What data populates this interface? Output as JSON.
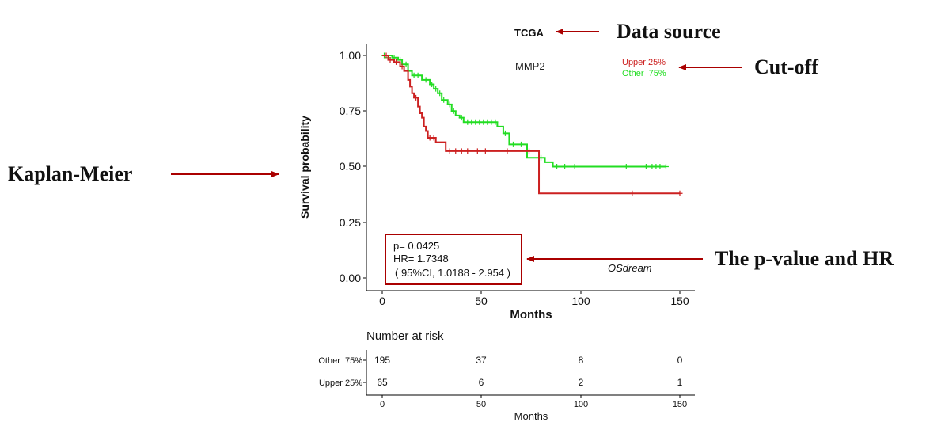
{
  "annotations": {
    "data_source": "Data source",
    "cutoff": "Cut-off",
    "kaplan_meier": "Kaplan-Meier",
    "pvalue_hr": "The p-value and HR"
  },
  "chart_data": [
    {
      "type": "line",
      "subtype": "kaplan-meier",
      "source_label": "TCGA",
      "gene_label": "MMP2",
      "xlabel": "Months",
      "ylabel": "Survival probability",
      "xlim": [
        0,
        150
      ],
      "ylim": [
        0,
        1
      ],
      "xticks": [
        "0",
        "50",
        "100",
        "150"
      ],
      "yticks": [
        "0.00",
        "0.25",
        "0.50",
        "0.75",
        "1.00"
      ],
      "watermark": "OSdream",
      "legend": [
        "Upper 25%",
        "Other  75%"
      ],
      "stats": {
        "p": "p= 0.0425",
        "hr": "HR= 1.7348",
        "ci": "( 95%CI, 1.0188 - 2.954 )"
      },
      "colors": {
        "upper": "#cc2020",
        "other": "#22dd22",
        "annotation": "#aa0000"
      },
      "series": [
        {
          "name": "Upper 25%",
          "color": "#cc2020",
          "steps": [
            [
              0,
              1.0
            ],
            [
              3,
              0.98
            ],
            [
              6,
              0.97
            ],
            [
              9,
              0.95
            ],
            [
              11,
              0.93
            ],
            [
              13,
              0.89
            ],
            [
              14,
              0.86
            ],
            [
              15,
              0.83
            ],
            [
              16,
              0.81
            ],
            [
              18,
              0.77
            ],
            [
              19,
              0.74
            ],
            [
              20,
              0.72
            ],
            [
              21,
              0.68
            ],
            [
              22,
              0.66
            ],
            [
              23,
              0.63
            ],
            [
              27,
              0.61
            ],
            [
              32,
              0.57
            ],
            [
              79,
              0.38
            ],
            [
              150,
              0.38
            ]
          ],
          "censor": [
            [
              2,
              1.0
            ],
            [
              4,
              0.98
            ],
            [
              7,
              0.97
            ],
            [
              10,
              0.95
            ],
            [
              17,
              0.81
            ],
            [
              24,
              0.63
            ],
            [
              26,
              0.63
            ],
            [
              34,
              0.57
            ],
            [
              37,
              0.57
            ],
            [
              40,
              0.57
            ],
            [
              43,
              0.57
            ],
            [
              48,
              0.57
            ],
            [
              52,
              0.57
            ],
            [
              63,
              0.57
            ],
            [
              74,
              0.57
            ],
            [
              126,
              0.38
            ],
            [
              150,
              0.38
            ]
          ]
        },
        {
          "name": "Other  75%",
          "color": "#22dd22",
          "steps": [
            [
              0,
              1.0
            ],
            [
              5,
              0.99
            ],
            [
              8,
              0.98
            ],
            [
              10,
              0.96
            ],
            [
              13,
              0.93
            ],
            [
              15,
              0.91
            ],
            [
              20,
              0.89
            ],
            [
              24,
              0.87
            ],
            [
              26,
              0.85
            ],
            [
              28,
              0.83
            ],
            [
              30,
              0.8
            ],
            [
              33,
              0.78
            ],
            [
              35,
              0.75
            ],
            [
              37,
              0.73
            ],
            [
              39,
              0.72
            ],
            [
              41,
              0.7
            ],
            [
              58,
              0.68
            ],
            [
              61,
              0.65
            ],
            [
              64,
              0.6
            ],
            [
              73,
              0.54
            ],
            [
              78,
              0.54
            ],
            [
              82,
              0.52
            ],
            [
              86,
              0.5
            ],
            [
              143,
              0.5
            ]
          ],
          "censor": [
            [
              1,
              1.0
            ],
            [
              3,
              0.99
            ],
            [
              6,
              0.99
            ],
            [
              9,
              0.98
            ],
            [
              12,
              0.96
            ],
            [
              16,
              0.91
            ],
            [
              18,
              0.91
            ],
            [
              22,
              0.89
            ],
            [
              25,
              0.87
            ],
            [
              27,
              0.85
            ],
            [
              29,
              0.83
            ],
            [
              31,
              0.8
            ],
            [
              34,
              0.78
            ],
            [
              36,
              0.75
            ],
            [
              40,
              0.72
            ],
            [
              43,
              0.7
            ],
            [
              45,
              0.7
            ],
            [
              47,
              0.7
            ],
            [
              49,
              0.7
            ],
            [
              51,
              0.7
            ],
            [
              53,
              0.7
            ],
            [
              55,
              0.7
            ],
            [
              57,
              0.7
            ],
            [
              62,
              0.65
            ],
            [
              66,
              0.6
            ],
            [
              70,
              0.6
            ],
            [
              80,
              0.54
            ],
            [
              88,
              0.5
            ],
            [
              92,
              0.5
            ],
            [
              97,
              0.5
            ],
            [
              123,
              0.5
            ],
            [
              133,
              0.5
            ],
            [
              136,
              0.5
            ],
            [
              138,
              0.5
            ],
            [
              140,
              0.5
            ],
            [
              143,
              0.5
            ]
          ]
        }
      ]
    },
    {
      "type": "table",
      "title": "Number at risk",
      "xlabel": "Months",
      "xlim": [
        0,
        150
      ],
      "xticks": [
        "0",
        "50",
        "100",
        "150"
      ],
      "rows": [
        {
          "label": "Other  75%",
          "values": [
            "195",
            "37",
            "8",
            "0"
          ]
        },
        {
          "label": "Upper 25%",
          "values": [
            "65",
            "6",
            "2",
            "1"
          ]
        }
      ]
    }
  ]
}
